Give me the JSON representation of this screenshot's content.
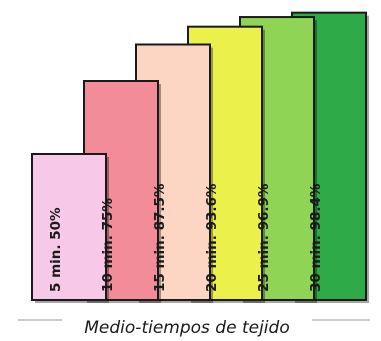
{
  "chart_data": {
    "type": "bar",
    "categories": [
      "5 min.",
      "10 min.",
      "15 min.",
      "20 min.",
      "25 min.",
      "30 min."
    ],
    "values": [
      50,
      75,
      87.5,
      93.6,
      96.9,
      98.4
    ],
    "labels": [
      "5 min. 50%",
      "10 min. 75%",
      "15 min. 87.5%",
      "20 min. 93.6%",
      "25 min. 96.9%",
      "30 min. 98.4%"
    ],
    "colors": [
      "#f8c8e8",
      "#f28c98",
      "#fcd6c2",
      "#ecf04a",
      "#8fd455",
      "#2faa48"
    ],
    "caption": "Medio-tiempos de tejido",
    "ylim": [
      0,
      100
    ],
    "grid": false
  }
}
